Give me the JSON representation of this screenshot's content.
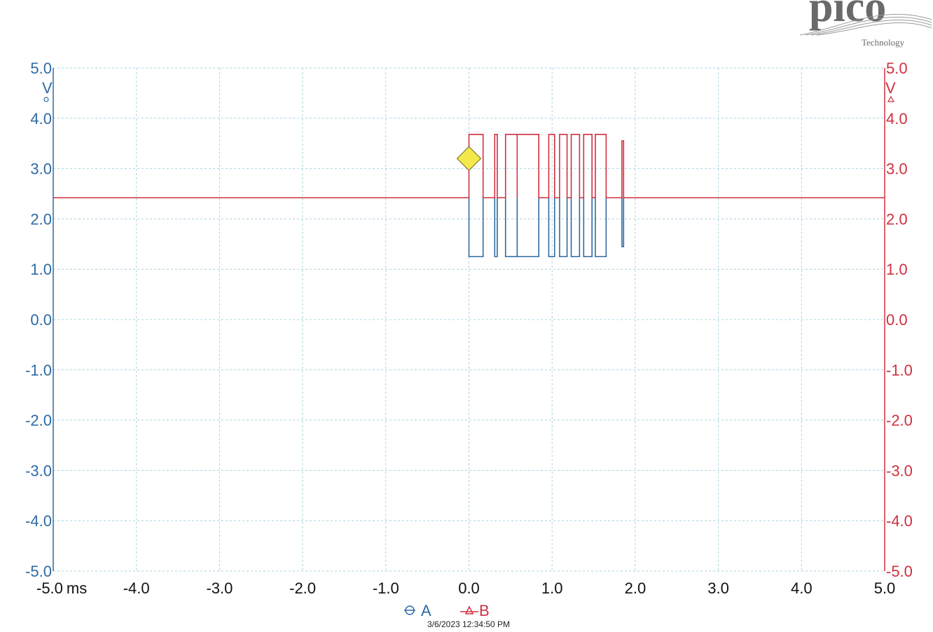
{
  "brand": {
    "name": "pico",
    "subtitle": "Technology"
  },
  "timestamp": "3/6/2023 12:34:50 PM",
  "colors": {
    "channel_a": "#2f6aa3",
    "channel_b": "#d0303f",
    "trigger": "#f5e84a",
    "grid": "#a9d4e0"
  },
  "legend": [
    {
      "id": "A",
      "label": "A",
      "marker": "circle-marker-icon",
      "color": "#2f6aa3"
    },
    {
      "id": "B",
      "label": "B",
      "marker": "triangle-marker-icon",
      "color": "#d0303f"
    }
  ],
  "chart_data": {
    "type": "line",
    "title": "",
    "x_unit_label": "ms",
    "xlim": [
      -5,
      5
    ],
    "ylim": [
      -5,
      5
    ],
    "x_tick_labels": [
      "-5.0",
      "-4.0",
      "-3.0",
      "-2.0",
      "-1.0",
      "0.0",
      "1.0",
      "2.0",
      "3.0",
      "4.0",
      "5.0"
    ],
    "y_tick_labels": [
      "5.0",
      "4.0",
      "3.0",
      "2.0",
      "1.0",
      "0.0",
      "-1.0",
      "-2.0",
      "-3.0",
      "-4.0",
      "-5.0"
    ],
    "y_left_unit": "V",
    "y_right_unit": "V",
    "grid": true,
    "legend_position": "bottom-center",
    "trigger": {
      "x": 0.0,
      "y": 3.2,
      "marker": "yellow-diamond"
    },
    "idle_level": 2.42,
    "series": [
      {
        "name": "A",
        "color": "#2f6aa3",
        "high": 2.42,
        "low": 1.25,
        "active_intervals_ms": [
          [
            0.0,
            0.17
          ],
          [
            0.31,
            0.34
          ],
          [
            0.44,
            0.58
          ],
          [
            0.58,
            0.84
          ],
          [
            0.96,
            1.03
          ],
          [
            1.09,
            1.18
          ],
          [
            1.23,
            1.33
          ],
          [
            1.38,
            1.48
          ],
          [
            1.52,
            1.65
          ]
        ],
        "tail_pulse": {
          "x": [
            1.84,
            1.86
          ],
          "y": 1.45
        }
      },
      {
        "name": "B",
        "color": "#d0303f",
        "high": 3.68,
        "low": 2.42,
        "active_intervals_ms": [
          [
            0.0,
            0.17
          ],
          [
            0.31,
            0.34
          ],
          [
            0.44,
            0.58
          ],
          [
            0.58,
            0.84
          ],
          [
            0.96,
            1.03
          ],
          [
            1.09,
            1.18
          ],
          [
            1.23,
            1.33
          ],
          [
            1.38,
            1.48
          ],
          [
            1.52,
            1.65
          ]
        ],
        "tail_pulse": {
          "x": [
            1.84,
            1.86
          ],
          "y": 3.55
        }
      }
    ]
  }
}
